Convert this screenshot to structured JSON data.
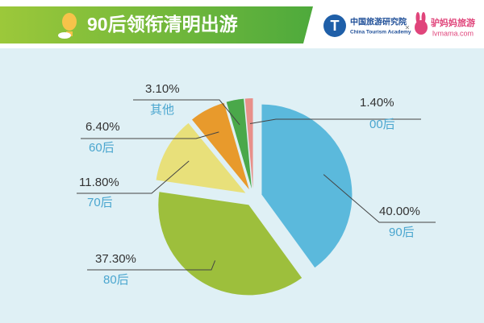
{
  "chart_data": {
    "type": "pie",
    "title": "90后领衔清明出游",
    "categories": [
      "90后",
      "80后",
      "70后",
      "60后",
      "其他",
      "00后"
    ],
    "values": [
      40.0,
      37.3,
      11.8,
      6.4,
      3.1,
      1.4
    ],
    "value_labels": [
      "40.00%",
      "37.30%",
      "11.80%",
      "6.40%",
      "3.10%",
      "1.40%"
    ],
    "colors": [
      "#5bb9dc",
      "#9dbf3c",
      "#e8e07a",
      "#e89a2c",
      "#4aa84a",
      "#e8908a"
    ]
  },
  "logos": {
    "academy_cn": "中国旅游研究院",
    "academy_en": "China Tourism Academy",
    "separator": "×",
    "partner_cn": "驴妈妈旅游",
    "partner_en": "lvmama.com"
  }
}
